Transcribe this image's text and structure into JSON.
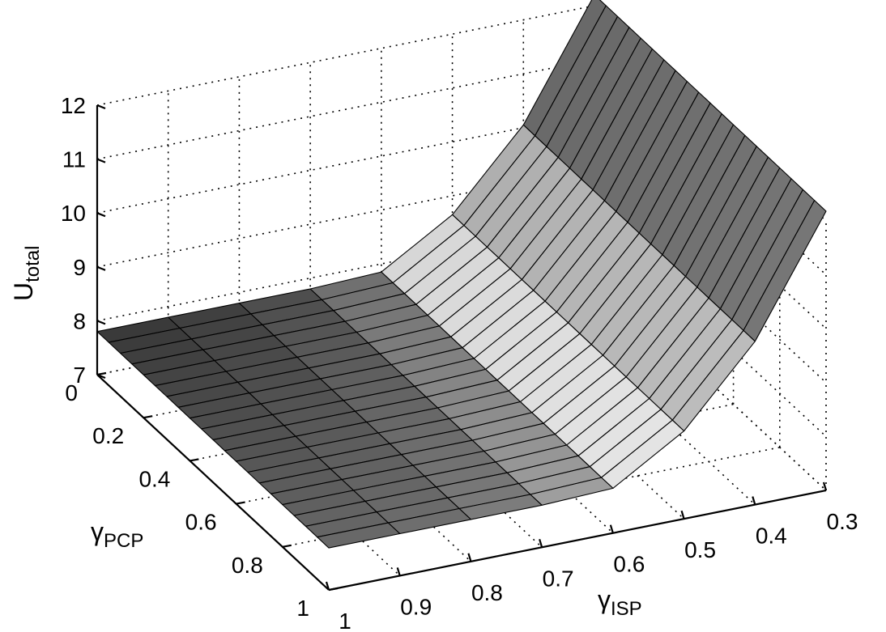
{
  "chart_data": {
    "type": "surface3d",
    "title": "",
    "zlabel": {
      "base": "U",
      "sub": "total"
    },
    "xlabel": {
      "base": "γ",
      "sub": "ISP"
    },
    "ylabel": {
      "base": "γ",
      "sub": "PCP"
    },
    "xlim": [
      0.3,
      1
    ],
    "ylim": [
      0,
      1
    ],
    "zlim": [
      7,
      12
    ],
    "x_ticks": [
      "1",
      "0.9",
      "0.8",
      "0.7",
      "0.6",
      "0.5",
      "0.4",
      "0.3"
    ],
    "y_ticks": [
      "0",
      "0.2",
      "0.4",
      "0.6",
      "0.8",
      "1"
    ],
    "z_ticks": [
      "7",
      "8",
      "9",
      "10",
      "11",
      "12"
    ],
    "grid": true,
    "x_values": [
      1,
      0.9,
      0.8,
      0.7,
      0.6,
      0.5,
      0.4,
      0.3
    ],
    "y_points": 21,
    "z_profile_by_x": [
      7.8,
      7.8,
      7.8,
      7.8,
      7.85,
      8.65,
      10.05,
      12.2
    ],
    "z_slope_along_y": -0.02
  }
}
